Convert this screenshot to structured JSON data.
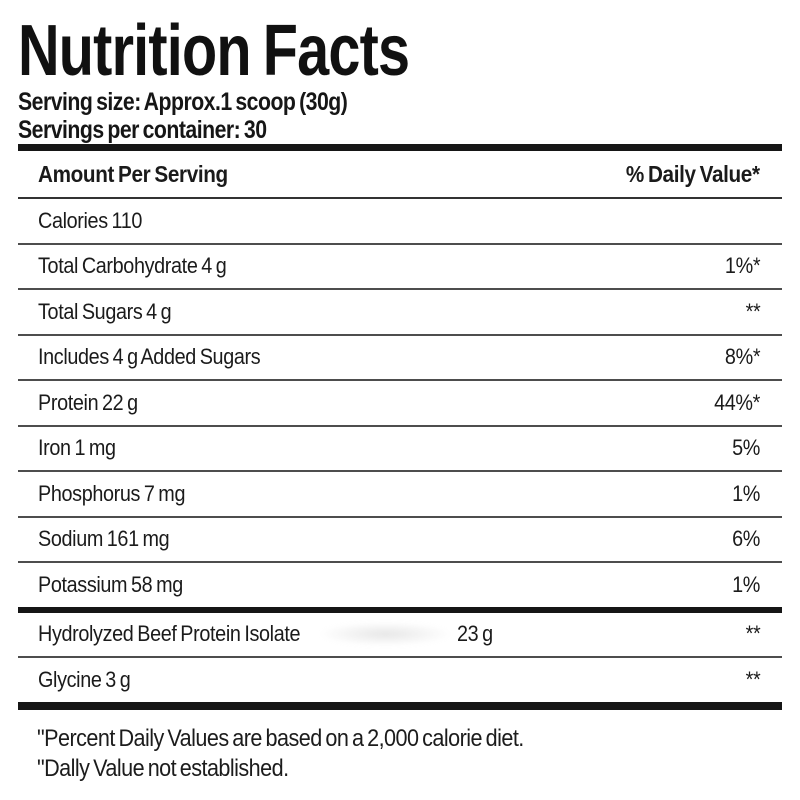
{
  "label": {
    "title": "Nutrition Facts",
    "serving_size": "Serving size: Approx.1 scoop (30g)",
    "servings_per_container": "Servings per container: 30",
    "header": {
      "left": "Amount Per Serving",
      "right": "% Daily Value*"
    },
    "rows": [
      {
        "name": "Calories 110",
        "dv": ""
      },
      {
        "name": "Total Carbohydrate 4 g",
        "dv": "1%*"
      },
      {
        "name": "Total Sugars 4 g",
        "dv": "**"
      },
      {
        "name": "Includes 4 g Added Sugars",
        "dv": "8%*"
      },
      {
        "name": "Protein 22 g",
        "dv": "44%*"
      },
      {
        "name": "Iron 1 mg",
        "dv": "5%"
      },
      {
        "name": "Phosphorus 7 mg",
        "dv": "1%"
      },
      {
        "name": "Sodium 161 mg",
        "dv": "6%"
      },
      {
        "name": "Potassium 58 mg",
        "dv": "1%"
      },
      {
        "name": "Hydrolyzed Beef Protein Isolate",
        "amount": "23 g",
        "dv": "**"
      },
      {
        "name": "Glycine 3 g",
        "dv": "**"
      }
    ],
    "footnotes": [
      "\"Percent Daily Values are based on a 2,000 calorie diet.",
      "\"Dally Value not established."
    ],
    "colors": {
      "text": "#1b1b1b",
      "rule_thick": "#161616",
      "rule_thin": "#4d4d4d",
      "background": "#ffffff"
    }
  }
}
